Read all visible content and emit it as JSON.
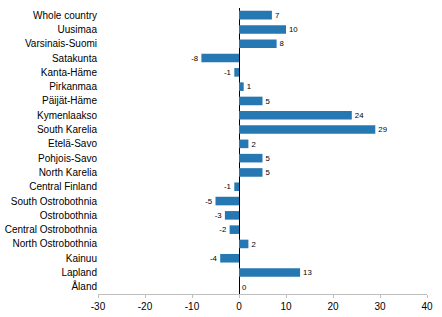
{
  "chart_data": {
    "type": "bar",
    "orientation": "horizontal",
    "categories": [
      "Whole country",
      "Uusimaa",
      "Varsinais-Suomi",
      "Satakunta",
      "Kanta-Häme",
      "Pirkanmaa",
      "Päijät-Häme",
      "Kymenlaakso",
      "South Karelia",
      "Etelä-Savo",
      "Pohjois-Savo",
      "North Karelia",
      "Central Finland",
      "South Ostrobothnia",
      "Ostrobothnia",
      "Central Ostrobothnia",
      "North Ostrobothnia",
      "Kainuu",
      "Lapland",
      "Åland"
    ],
    "values": [
      7,
      10,
      8,
      -8,
      -1,
      1,
      5,
      24,
      29,
      2,
      5,
      5,
      -1,
      -5,
      -3,
      -2,
      2,
      -4,
      13,
      0
    ],
    "color": "#2678b2",
    "xlim": [
      -30,
      40
    ],
    "xticks": [
      -30,
      -20,
      -10,
      0,
      10,
      20,
      30,
      40
    ],
    "grid": false,
    "data_labels": true
  }
}
